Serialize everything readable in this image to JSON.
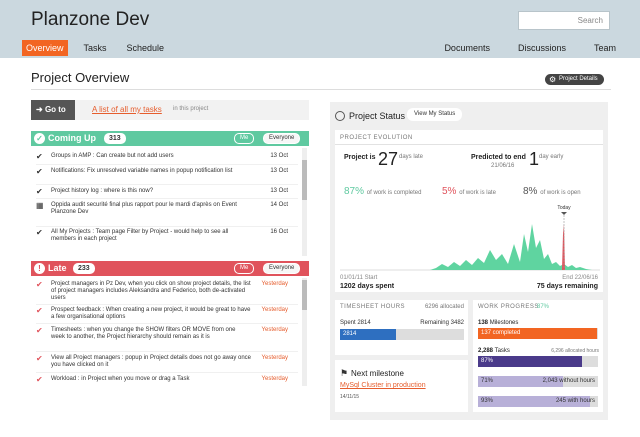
{
  "app": {
    "title": "Planzone Dev"
  },
  "search": {
    "placeholder": "Search"
  },
  "nav": {
    "left": [
      "Overview",
      "Tasks",
      "Schedule"
    ],
    "right": [
      "Documents",
      "Discussions",
      "Team"
    ]
  },
  "page": {
    "title": "Project Overview",
    "details_button": "Project Details"
  },
  "goto": {
    "button": "Go to",
    "link": "A list of all my tasks",
    "suffix": "in this project"
  },
  "coming_up": {
    "title": "Coming Up",
    "count": "313",
    "filter_me": "Me",
    "filter_everyone": "Everyone",
    "tasks": [
      {
        "text": "Groups in AMP : Can create but not add users",
        "date": "13 Oct",
        "icon": "check-icon"
      },
      {
        "text": "Notifications: Fix unresolved variable names in popup notification list",
        "date": "13 Oct",
        "icon": "check-icon"
      },
      {
        "text": "Project history log : where is this now?",
        "date": "13 Oct",
        "icon": "check-icon"
      },
      {
        "text": "Oppida audit securité final plus rapport pour le mardi d'après on Event Planzone Dev",
        "date": "14 Oct",
        "icon": "calendar-icon"
      },
      {
        "text": "All My Projects : Team page Filter by Project - would help to see all members in each project",
        "date": "16 Oct",
        "icon": "check-icon"
      }
    ]
  },
  "late": {
    "title": "Late",
    "count": "233",
    "filter_me": "Me",
    "filter_everyone": "Everyone",
    "tasks": [
      {
        "text": "Project managers in Pz Dev, when you click on show project details, the list of project managers includes Aleksandra and Federico, both de-activated users",
        "date": "Yesterday"
      },
      {
        "text": "Prospect feedback : When creating a new project, it would be great to have a few organisational options",
        "date": "Yesterday"
      },
      {
        "text": "Timesheets : when you change the SHOW filters OR MOVE from one week to another, the Project hierarchy should remain as it is",
        "date": "Yesterday"
      },
      {
        "text": "View all Project managers : popup in Project details does not go away once you have clicked on it",
        "date": "Yesterday"
      },
      {
        "text": "Workload : in Project when you move or drag a Task",
        "date": "Yesterday"
      }
    ]
  },
  "status": {
    "title": "Project Status",
    "view_button": "View My Status",
    "evolution": {
      "label": "PROJECT EVOLUTION",
      "project_is": "Project is",
      "days_late_value": "27",
      "days_late_label": "days late",
      "predicted_label": "Predicted to end",
      "predicted_date": "21/06/16",
      "predicted_value": "1",
      "predicted_unit": "day early",
      "completed_pct": "87%",
      "completed_label": "of work is completed",
      "late_pct": "5%",
      "late_label": "of work is late",
      "open_pct": "8%",
      "open_label": "of work is open",
      "today_label": "Today",
      "start_date": "01/01/11",
      "start_label": "Start",
      "end_label": "End",
      "end_date": "22/06/16",
      "days_spent": "1202 days spent",
      "days_remaining": "75 days remaining"
    },
    "timesheet": {
      "title": "TIMESHEET HOURS",
      "allocated": "6296 allocated",
      "spent_label": "Spent 2814",
      "remaining_label": "Remaining 3482",
      "spent_value": "2814",
      "spent_fraction": 0.45
    },
    "next_milestone": {
      "title": "Next milestone",
      "name": "MySql Cluster in production",
      "date": "14/11/15"
    },
    "work_progress": {
      "title": "WORK PROGRESS",
      "pct": "87%",
      "milestones_count": "138",
      "milestones_label": "Milestones",
      "completed_label": "137 completed",
      "milestones_fraction": 0.99,
      "tasks_count": "2,288",
      "tasks_label": "Tasks",
      "tasks_allocated": "6,296 allocated hours",
      "tasks_pct": "87%",
      "tasks_fraction": 0.87,
      "without_pct": "71%",
      "without_label": "2,043 without hours",
      "without_fraction": 0.71,
      "with_pct": "93%",
      "with_label": "245 with hours",
      "with_fraction": 0.93
    }
  },
  "colors": {
    "accent": "#f26522",
    "coming_up": "#5fc9a0",
    "late": "#e0535c",
    "timesheet_bar": "#2e6fc0",
    "milestone_bar": "#f26522",
    "tasks_bar": "#4a3a8a",
    "tasks_light_bar": "#b8b0d8",
    "chart_fill": "#5fd4a0"
  }
}
